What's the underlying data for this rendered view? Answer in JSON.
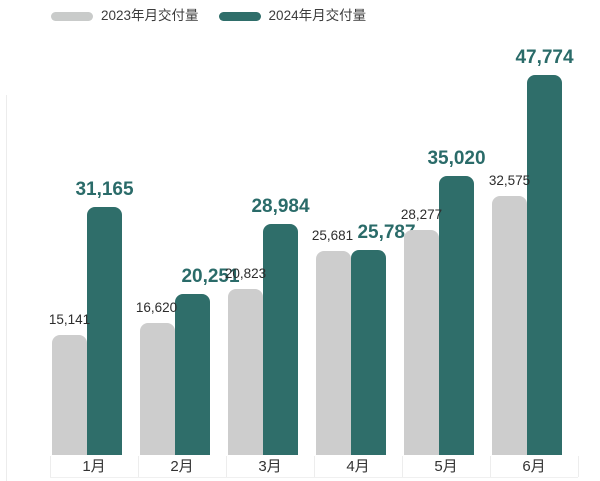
{
  "legend": {
    "items": [
      {
        "id": "2023",
        "label": "2023年月交付量",
        "color": "#C9CBCA"
      },
      {
        "id": "2024",
        "label": "2024年月交付量",
        "color": "#2F6E6A"
      }
    ]
  },
  "chart_data": {
    "type": "bar",
    "categories": [
      "1月",
      "2月",
      "3月",
      "4月",
      "5月",
      "6月"
    ],
    "series": [
      {
        "name": "2023年月交付量",
        "color": "#CDCDCD",
        "label_color": "#2d2d2d",
        "values": [
          15141,
          16620,
          20823,
          25681,
          28277,
          32575
        ],
        "labels": [
          "15,141",
          "16,620",
          "20,823",
          "25,681",
          "28,277",
          "32,575"
        ]
      },
      {
        "name": "2024年月交付量",
        "color": "#2F6E6A",
        "label_color": "#2A6B69",
        "values": [
          31165,
          20251,
          28984,
          25787,
          35020,
          47774
        ],
        "labels": [
          "31,165",
          "20,251",
          "28,984",
          "25,787",
          "35,020",
          "47,774"
        ]
      }
    ],
    "ylim": [
      0,
      47774
    ],
    "grid": false,
    "legend_position": "top-left",
    "title": "",
    "xlabel": "",
    "ylabel": ""
  }
}
